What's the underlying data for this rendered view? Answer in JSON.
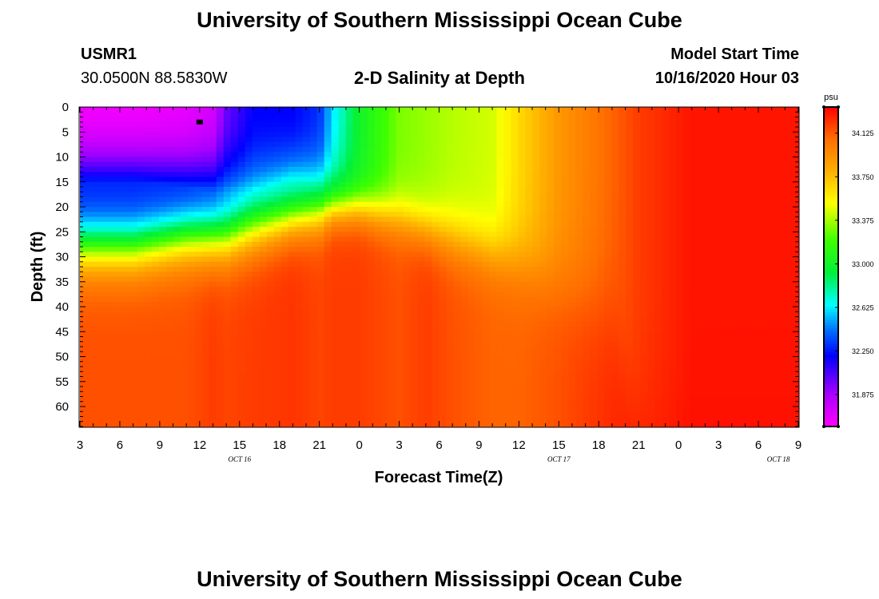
{
  "header": {
    "title_top": "University of Southern Mississippi Ocean Cube",
    "station_id": "USMR1",
    "station_coords": "30.0500N 88.5830W",
    "chart_title": "2-D Salinity at Depth",
    "model_label": "Model Start Time",
    "model_time": "10/16/2020 Hour 03"
  },
  "footer": {
    "title_bottom": "University of Southern Mississippi Ocean Cube"
  },
  "colors": {
    "background": "#ffffff",
    "marker": "#000000"
  },
  "chart_data": {
    "type": "heatmap",
    "title": "2-D Salinity at Depth",
    "xlabel": "Forecast Time(Z)",
    "ylabel": "Depth (ft)",
    "colorbar_unit": "psu",
    "colorbar_ticks": [
      "34.125",
      "33.750",
      "33.375",
      "33.000",
      "32.625",
      "32.250",
      "31.875"
    ],
    "colorbar_range": [
      31.6,
      34.35
    ],
    "x_range_hours": [
      0,
      54
    ],
    "x_tick_labels": [
      "3",
      "6",
      "9",
      "12",
      "15",
      "18",
      "21",
      "0",
      "3",
      "6",
      "9",
      "12",
      "15",
      "18",
      "21",
      "0",
      "3",
      "6",
      "9"
    ],
    "date_labels": [
      {
        "text": "OCT 16",
        "hour": 12
      },
      {
        "text": "OCT 17",
        "hour": 36
      },
      {
        "text": "OCT 18",
        "hour": 52.5
      }
    ],
    "y_range_ft": [
      0,
      64
    ],
    "y_tick_labels": [
      "0",
      "5",
      "10",
      "15",
      "20",
      "25",
      "30",
      "35",
      "40",
      "45",
      "50",
      "55",
      "60"
    ],
    "station_marker": {
      "hour": 9,
      "depth_ft": 3
    },
    "profiles": {
      "hours": [
        0,
        4,
        8,
        10,
        11,
        13,
        16,
        18,
        19,
        21,
        24,
        26,
        28,
        31,
        33,
        36,
        38,
        40,
        42,
        44,
        46,
        54
      ],
      "surface_salinity": [
        31.65,
        31.65,
        31.68,
        31.75,
        32.0,
        32.2,
        32.2,
        32.3,
        32.6,
        33.0,
        33.3,
        33.35,
        33.4,
        33.45,
        33.65,
        33.9,
        34.0,
        34.1,
        34.2,
        34.25,
        34.3,
        34.3
      ],
      "mid_salinity": [
        32.25,
        32.25,
        32.25,
        32.3,
        32.4,
        32.5,
        32.6,
        32.6,
        32.75,
        33.0,
        33.3,
        33.35,
        33.4,
        33.45,
        33.65,
        33.9,
        34.0,
        34.1,
        34.2,
        34.25,
        34.3,
        34.3
      ],
      "bottom_salinity": [
        34.15,
        34.15,
        34.15,
        34.2,
        34.18,
        34.2,
        34.22,
        34.18,
        34.2,
        34.2,
        34.15,
        34.2,
        34.15,
        34.1,
        34.1,
        34.15,
        34.2,
        34.25,
        34.3,
        34.3,
        34.32,
        34.32
      ],
      "mixed_layer_depth_ft": [
        15,
        15,
        16,
        17,
        17,
        17,
        15,
        16,
        14,
        14,
        16,
        17,
        18,
        20,
        21,
        24,
        28,
        33,
        33,
        33,
        33,
        33
      ],
      "halocline_depth_ft": [
        28,
        28,
        26,
        26,
        26,
        24,
        22,
        21,
        20,
        20,
        22,
        24,
        26,
        29,
        31,
        35,
        38,
        42,
        64,
        64,
        64,
        64
      ],
      "halocline_width_ft": [
        7,
        7,
        7,
        7,
        7,
        7,
        6,
        6,
        5,
        5,
        6,
        6,
        7,
        7,
        8,
        10,
        12,
        14,
        16,
        16,
        16,
        16
      ]
    }
  }
}
